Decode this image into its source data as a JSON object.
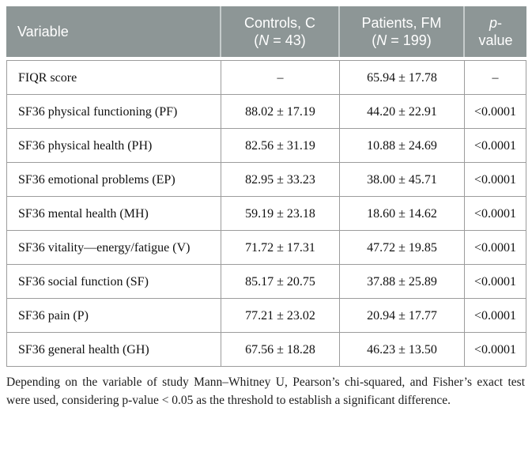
{
  "header": {
    "col1": "Variable",
    "col2": {
      "line1": "Controls, C",
      "open": "(",
      "n": "N",
      "rest": " = 43)"
    },
    "col3": {
      "line1": "Patients, FM",
      "open": "(",
      "n": "N",
      "rest": " = 199)"
    },
    "col4": {
      "p": "p",
      "dash": "-",
      "line2": "value"
    }
  },
  "table": {
    "rows": [
      {
        "variable": "FIQR score",
        "controls": "–",
        "patients": "65.94 ± 17.78",
        "p": "–"
      },
      {
        "variable": "SF36 physical functioning (PF)",
        "controls": "88.02 ± 17.19",
        "patients": "44.20 ± 22.91",
        "p": "<0.0001"
      },
      {
        "variable": "SF36 physical health (PH)",
        "controls": "82.56 ± 31.19",
        "patients": "10.88 ± 24.69",
        "p": "<0.0001"
      },
      {
        "variable": "SF36 emotional problems (EP)",
        "controls": "82.95 ± 33.23",
        "patients": "38.00 ± 45.71",
        "p": "<0.0001"
      },
      {
        "variable": "SF36 mental health (MH)",
        "controls": "59.19 ± 23.18",
        "patients": "18.60 ± 14.62",
        "p": "<0.0001"
      },
      {
        "variable": "SF36 vitality—energy/fatigue (V)",
        "controls": "71.72 ± 17.31",
        "patients": "47.72 ± 19.85",
        "p": "<0.0001"
      },
      {
        "variable": "SF36 social function (SF)",
        "controls": "85.17 ± 20.75",
        "patients": "37.88 ± 25.89",
        "p": "<0.0001"
      },
      {
        "variable": "SF36 pain (P)",
        "controls": "77.21 ± 23.02",
        "patients": "20.94 ± 17.77",
        "p": "<0.0001"
      },
      {
        "variable": "SF36 general health (GH)",
        "controls": "67.56 ± 18.28",
        "patients": "46.23 ± 13.50",
        "p": "<0.0001"
      }
    ]
  },
  "footnote": "Depending on the variable of study Mann–Whitney U, Pearson’s chi-squared, and Fisher’s exact test were used, considering p-value < 0.05 as the threshold to establish a significant difference.",
  "colors": {
    "header_bg": "#8d9696",
    "header_text": "#ffffff",
    "body_border": "#9c9c9c"
  }
}
